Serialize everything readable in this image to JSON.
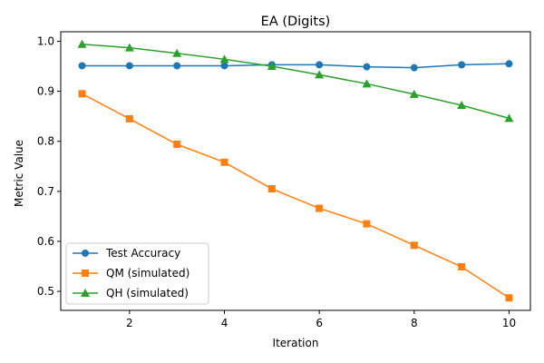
{
  "chart_data": {
    "type": "line",
    "title": "EA (Digits)",
    "xlabel": "Iteration",
    "ylabel": "Metric Value",
    "x": [
      1,
      2,
      3,
      4,
      5,
      6,
      7,
      8,
      9,
      10
    ],
    "xlim": [
      0.55,
      10.45
    ],
    "ylim": [
      0.462,
      1.019
    ],
    "xticks": [
      2,
      4,
      6,
      8,
      10
    ],
    "yticks": [
      0.5,
      0.6,
      0.7,
      0.8,
      0.9,
      1.0
    ],
    "ytick_labels": [
      "0.5",
      "0.6",
      "0.7",
      "0.8",
      "0.9",
      "1.0"
    ],
    "grid": false,
    "legend_position": "lower-left",
    "series": [
      {
        "name": "Test Accuracy",
        "color": "#1f77b4",
        "marker": "circle",
        "values": [
          0.951,
          0.951,
          0.951,
          0.951,
          0.953,
          0.953,
          0.949,
          0.947,
          0.953,
          0.955
        ]
      },
      {
        "name": "QM (simulated)",
        "color": "#ff7f0e",
        "marker": "square",
        "values": [
          0.895,
          0.845,
          0.794,
          0.758,
          0.705,
          0.666,
          0.635,
          0.592,
          0.549,
          0.487
        ]
      },
      {
        "name": "QH (simulated)",
        "color": "#2ca02c",
        "marker": "triangle",
        "values": [
          0.994,
          0.987,
          0.976,
          0.964,
          0.95,
          0.933,
          0.915,
          0.894,
          0.872,
          0.846
        ]
      }
    ]
  }
}
